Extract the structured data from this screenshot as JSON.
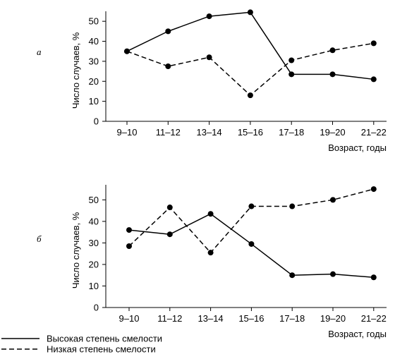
{
  "legend": [
    {
      "label": "Высокая степень смелости",
      "style": "solid"
    },
    {
      "label": "Низкая степень смелости",
      "style": "dashed"
    }
  ],
  "chart_data": [
    {
      "type": "line",
      "panel_label": "а",
      "categories": [
        "9–10",
        "11–12",
        "13–14",
        "15–16",
        "17–18",
        "19–20",
        "21–22"
      ],
      "xlabel": "Возраст, годы",
      "ylabel": "Число случаев, %",
      "ylim": [
        0,
        55
      ],
      "yticks": [
        0,
        10,
        20,
        30,
        40,
        50
      ],
      "grid": false,
      "series": [
        {
          "name": "Высокая степень смелости",
          "style": "solid",
          "values": [
            35,
            45,
            52.5,
            54.5,
            23.5,
            23.5,
            21
          ]
        },
        {
          "name": "Низкая степень смелости",
          "style": "dashed",
          "values": [
            35,
            27.5,
            32,
            13,
            30.5,
            35.5,
            39
          ]
        }
      ]
    },
    {
      "type": "line",
      "panel_label": "б",
      "categories": [
        "9–10",
        "11–12",
        "13–14",
        "15–16",
        "17–18",
        "19–20",
        "21–22"
      ],
      "xlabel": "Возраст, годы",
      "ylabel": "Число случаев, %",
      "ylim": [
        0,
        57
      ],
      "yticks": [
        0,
        10,
        20,
        30,
        40,
        50
      ],
      "grid": false,
      "series": [
        {
          "name": "Высокая степень смелости",
          "style": "solid",
          "values": [
            36,
            34,
            43.5,
            29.5,
            15,
            15.5,
            14
          ]
        },
        {
          "name": "Низкая степень смелости",
          "style": "dashed",
          "values": [
            28.5,
            46.5,
            25.5,
            47,
            47,
            50,
            55
          ]
        }
      ]
    }
  ]
}
